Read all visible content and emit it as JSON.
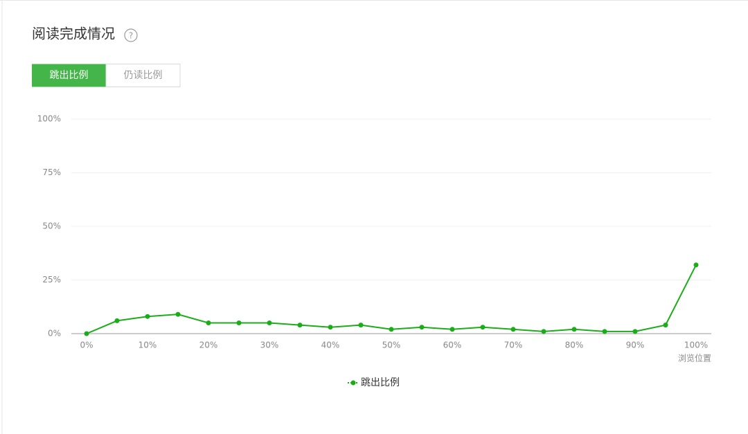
{
  "header": {
    "title": "阅读完成情况"
  },
  "tabs": [
    "跳出比例",
    "仍读比例"
  ],
  "chart_data": {
    "type": "line",
    "x": [
      0,
      5,
      10,
      15,
      20,
      25,
      30,
      35,
      40,
      45,
      50,
      55,
      60,
      65,
      70,
      75,
      80,
      85,
      90,
      95,
      100
    ],
    "series": [
      {
        "name": "跳出比例",
        "color": "#1aad19",
        "values": [
          0,
          6,
          8,
          9,
          5,
          5,
          5,
          4,
          3,
          4,
          2,
          3,
          2,
          3,
          2,
          1,
          2,
          1,
          1,
          4,
          32
        ]
      }
    ],
    "x_label": "浏览位置",
    "xlim": [
      -2.5,
      102.5
    ],
    "xticks": [
      {
        "value": 0,
        "label": "0%"
      },
      {
        "value": 10,
        "label": "10%"
      },
      {
        "value": 20,
        "label": "20%"
      },
      {
        "value": 30,
        "label": "30%"
      },
      {
        "value": 40,
        "label": "40%"
      },
      {
        "value": 50,
        "label": "50%"
      },
      {
        "value": 60,
        "label": "60%"
      },
      {
        "value": 70,
        "label": "70%"
      },
      {
        "value": 80,
        "label": "80%"
      },
      {
        "value": 90,
        "label": "90%"
      },
      {
        "value": 100,
        "label": "100%"
      }
    ],
    "ylim": [
      0,
      100
    ],
    "yticks": [
      {
        "value": 0,
        "label": "0%"
      },
      {
        "value": 25,
        "label": "25%"
      },
      {
        "value": 50,
        "label": "50%"
      },
      {
        "value": 75,
        "label": "75%"
      },
      {
        "value": 100,
        "label": "100%"
      }
    ],
    "grid": true
  }
}
